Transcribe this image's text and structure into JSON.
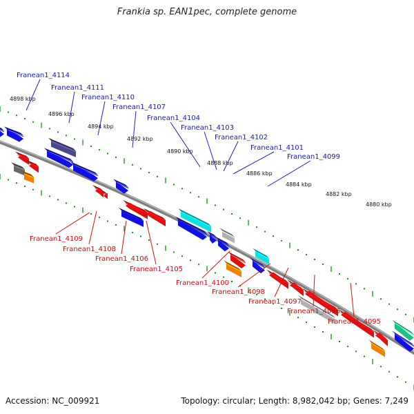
{
  "title": "Frankia sp. EAN1pec, complete genome",
  "footer": {
    "accession": "Accession: NC_009921",
    "summary": "Topology: circular; Length: 8,982,042 bp; Genes: 7,249"
  },
  "scale_labels": [
    "4898 kbp",
    "4896 kbp",
    "4894 kbp",
    "4892 kbp",
    "4890 kbp",
    "4888 kbp",
    "4886 kbp",
    "4884 kbp",
    "4882 kbp",
    "4880 kbp"
  ],
  "top_labels": [
    "Franean1_4114",
    "Franean1_4111",
    "Franean1_4110",
    "Franean1_4107",
    "Franean1_4104",
    "Franean1_4103",
    "Franean1_4102",
    "Franean1_4101",
    "Franean1_4099"
  ],
  "bottom_labels": [
    "Franean1_4109",
    "Franean1_4108",
    "Franean1_4106",
    "Franean1_4105",
    "Franean1_4100",
    "Franean1_4098",
    "Franean1_4097",
    "Franean1_4096",
    "Franean1_4095"
  ],
  "colors": {
    "blue": "#1010e0",
    "red": "#e01010",
    "cyan": "#10e0e0",
    "orange": "#f08000",
    "grey": "#b0b0b0",
    "darkgrey": "#666666",
    "purple": "#4a4a8a",
    "green": "#20c080",
    "tick": "#1a8a1a",
    "backbone": "#808080"
  }
}
